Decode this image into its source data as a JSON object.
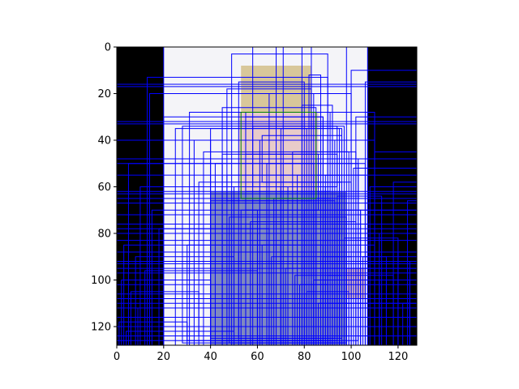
{
  "chart_data": {
    "type": "heatmap",
    "title": "",
    "xlabel": "",
    "ylabel": "",
    "xlim": [
      0,
      128
    ],
    "ylim": [
      128,
      0
    ],
    "x_ticks": [
      0,
      20,
      40,
      60,
      80,
      100,
      120
    ],
    "y_ticks": [
      0,
      20,
      40,
      60,
      80,
      100,
      120
    ],
    "grid": false,
    "image": {
      "description_free": true,
      "regions": [
        {
          "name": "left-border",
          "x0": 0,
          "x1": 20,
          "y0": 0,
          "y1": 128,
          "color": "#000000"
        },
        {
          "name": "right-border",
          "x0": 107,
          "x1": 128,
          "y0": 0,
          "y1": 128,
          "color": "#000000"
        },
        {
          "name": "background",
          "x0": 20,
          "x1": 107,
          "y0": 0,
          "y1": 128,
          "color": "#f4f4f8"
        },
        {
          "name": "hair",
          "x0": 53,
          "x1": 83,
          "y0": 8,
          "y1": 30,
          "color": "#d8c79a"
        },
        {
          "name": "face",
          "x0": 52,
          "x1": 86,
          "y0": 28,
          "y1": 66,
          "color": "#e8cbc9"
        },
        {
          "name": "body",
          "x0": 40,
          "x1": 98,
          "y0": 62,
          "y1": 128,
          "color": "#7f89c0"
        },
        {
          "name": "arm-right",
          "x0": 98,
          "x1": 106,
          "y0": 95,
          "y1": 108,
          "color": "#e3c2b8"
        }
      ]
    },
    "boxes_color": "#0000ff",
    "highlight_box": {
      "x0": 53,
      "y0": 28,
      "x1": 85,
      "y1": 65,
      "color": "#008000"
    },
    "boxes": [
      [
        0,
        0,
        128,
        128
      ],
      [
        0,
        0,
        20,
        128
      ],
      [
        107,
        0,
        128,
        128
      ],
      [
        0,
        16,
        128,
        17
      ],
      [
        0,
        32,
        128,
        33
      ],
      [
        0,
        63,
        128,
        65
      ],
      [
        0,
        78,
        128,
        80
      ],
      [
        0,
        93,
        128,
        95
      ],
      [
        0,
        108,
        128,
        110
      ],
      [
        13,
        13,
        90,
        128
      ],
      [
        14,
        20,
        100,
        128
      ],
      [
        20,
        30,
        88,
        128
      ],
      [
        25,
        35,
        95,
        128
      ],
      [
        31,
        28,
        110,
        128
      ],
      [
        33,
        40,
        92,
        128
      ],
      [
        37,
        45,
        99,
        128
      ],
      [
        40,
        35,
        81,
        128
      ],
      [
        42,
        50,
        106,
        128
      ],
      [
        45,
        26,
        85,
        128
      ],
      [
        47,
        55,
        95,
        128
      ],
      [
        49,
        3,
        90,
        128
      ],
      [
        50,
        60,
        70,
        128
      ],
      [
        52,
        15,
        80,
        128
      ],
      [
        53,
        70,
        100,
        128
      ],
      [
        55,
        30,
        88,
        128
      ],
      [
        57,
        75,
        102,
        128
      ],
      [
        58,
        0,
        98,
        128
      ],
      [
        60,
        80,
        90,
        128
      ],
      [
        61,
        40,
        93,
        128
      ],
      [
        62,
        85,
        110,
        128
      ],
      [
        64,
        50,
        84,
        128
      ],
      [
        65,
        20,
        84,
        128
      ],
      [
        66,
        90,
        100,
        128
      ],
      [
        67,
        65,
        91,
        128
      ],
      [
        68,
        0,
        83,
        128
      ],
      [
        70,
        35,
        96,
        128
      ],
      [
        71,
        0,
        79,
        128
      ],
      [
        72,
        95,
        104,
        128
      ],
      [
        73,
        60,
        89,
        128
      ],
      [
        75,
        45,
        102,
        128
      ],
      [
        76,
        98,
        96,
        128
      ],
      [
        77,
        55,
        92,
        128
      ],
      [
        78,
        102,
        90,
        128
      ],
      [
        79,
        25,
        92,
        128
      ],
      [
        80,
        70,
        104,
        128
      ],
      [
        81,
        105,
        99,
        128
      ],
      [
        82,
        12,
        87,
        128
      ],
      [
        83,
        80,
        96,
        128
      ],
      [
        84,
        100,
        112,
        128
      ],
      [
        85,
        48,
        103,
        128
      ],
      [
        86,
        110,
        100,
        128
      ],
      [
        87,
        28,
        107,
        128
      ],
      [
        88,
        90,
        115,
        128
      ],
      [
        89,
        55,
        106,
        128
      ],
      [
        90,
        98,
        118,
        128
      ],
      [
        91,
        40,
        110,
        128
      ],
      [
        92,
        100,
        125,
        128
      ],
      [
        94,
        64,
        113,
        128
      ],
      [
        95,
        110,
        125,
        128
      ],
      [
        96,
        70,
        128,
        128
      ],
      [
        97,
        82,
        120,
        128
      ],
      [
        98,
        95,
        128,
        128
      ],
      [
        100,
        10,
        128,
        128
      ],
      [
        101,
        52,
        128,
        128
      ],
      [
        102,
        30,
        128,
        128
      ],
      [
        104,
        70,
        128,
        128
      ],
      [
        105,
        90,
        128,
        128
      ],
      [
        106,
        15,
        128,
        128
      ],
      [
        108,
        60,
        128,
        128
      ],
      [
        110,
        45,
        128,
        128
      ],
      [
        112,
        80,
        128,
        128
      ],
      [
        115,
        100,
        128,
        128
      ],
      [
        118,
        58,
        128,
        128
      ],
      [
        120,
        88,
        128,
        128
      ],
      [
        122,
        110,
        128,
        128
      ],
      [
        124,
        66,
        128,
        128
      ],
      [
        125,
        92,
        128,
        128
      ],
      [
        0,
        40,
        40,
        128
      ],
      [
        5,
        50,
        45,
        128
      ],
      [
        10,
        60,
        55,
        128
      ],
      [
        15,
        70,
        60,
        128
      ],
      [
        18,
        78,
        65,
        128
      ],
      [
        3,
        85,
        70,
        128
      ],
      [
        8,
        90,
        50,
        128
      ],
      [
        12,
        96,
        60,
        128
      ],
      [
        2,
        100,
        40,
        128
      ],
      [
        6,
        105,
        35,
        128
      ],
      [
        9,
        112,
        55,
        128
      ],
      [
        1,
        118,
        30,
        128
      ],
      [
        4,
        122,
        50,
        128
      ],
      [
        0,
        48,
        128,
        128
      ],
      [
        0,
        55,
        128,
        128
      ],
      [
        0,
        62,
        128,
        128
      ],
      [
        0,
        67,
        128,
        128
      ],
      [
        0,
        72,
        128,
        128
      ],
      [
        0,
        76,
        128,
        128
      ],
      [
        0,
        83,
        128,
        128
      ],
      [
        0,
        88,
        128,
        128
      ],
      [
        0,
        92,
        128,
        128
      ],
      [
        0,
        97,
        128,
        128
      ],
      [
        0,
        102,
        128,
        128
      ],
      [
        0,
        106,
        128,
        128
      ],
      [
        0,
        112,
        128,
        128
      ],
      [
        0,
        116,
        128,
        128
      ],
      [
        0,
        120,
        128,
        128
      ],
      [
        0,
        124,
        128,
        128
      ],
      [
        0,
        50,
        103,
        126
      ],
      [
        28,
        34,
        97,
        127
      ],
      [
        45,
        46,
        94,
        126
      ],
      [
        35,
        58,
        100,
        124
      ],
      [
        40,
        66,
        93,
        125
      ],
      [
        48,
        73,
        98,
        127
      ],
      [
        30,
        85,
        88,
        126
      ],
      [
        52,
        88,
        96,
        125
      ],
      [
        55,
        28,
        91,
        62
      ],
      [
        58,
        34,
        94,
        60
      ],
      [
        62,
        38,
        96,
        58
      ],
      [
        47,
        18,
        83,
        66
      ],
      [
        55,
        46,
        86,
        70
      ]
    ]
  }
}
